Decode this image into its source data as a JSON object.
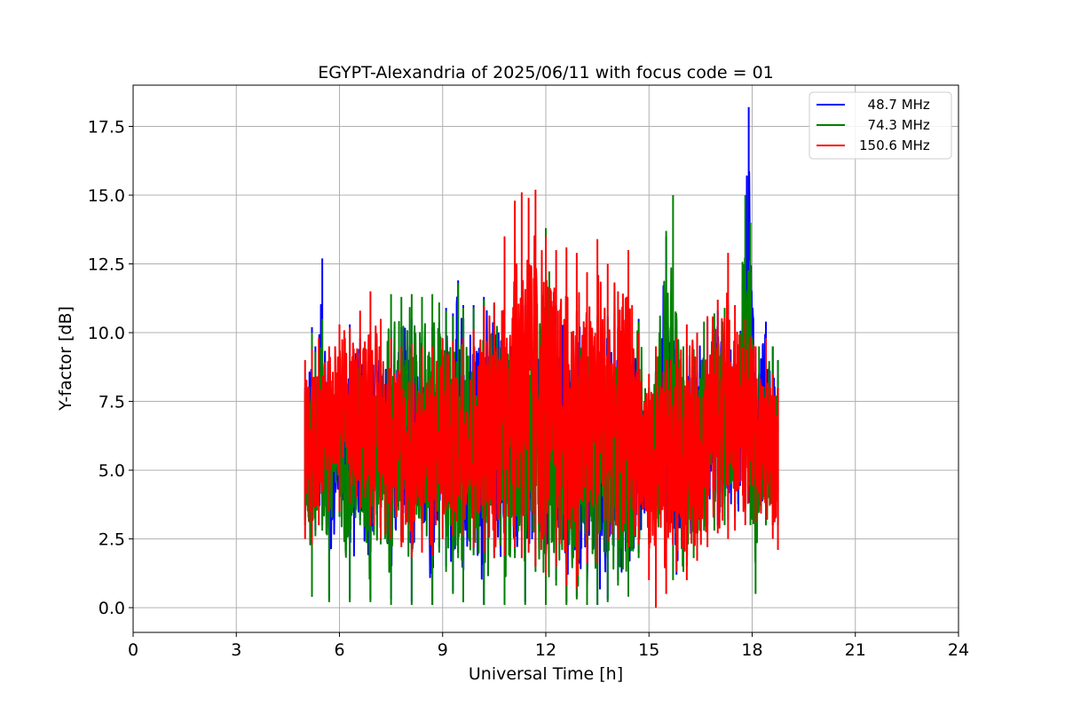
{
  "chart_data": {
    "type": "line",
    "title": "EGYPT-Alexandria of 2025/06/11 with focus code = 01",
    "xlabel": "Universal Time [h]",
    "ylabel": "Y-factor [dB]",
    "xlim": [
      0,
      24
    ],
    "ylim": [
      -0.9,
      19.0
    ],
    "x_ticks": [
      0,
      3,
      6,
      9,
      12,
      15,
      18,
      21,
      24
    ],
    "x_tick_labels": [
      "0",
      "3",
      "6",
      "9",
      "12",
      "15",
      "18",
      "21",
      "24"
    ],
    "y_ticks": [
      0.0,
      2.5,
      5.0,
      7.5,
      10.0,
      12.5,
      15.0,
      17.5
    ],
    "y_tick_labels": [
      "0.0",
      "2.5",
      "5.0",
      "7.5",
      "10.0",
      "12.5",
      "15.0",
      "17.5"
    ],
    "grid": true,
    "legend_position": "top-right",
    "series": [
      {
        "name": "  48.7 MHz",
        "color": "#0000ff",
        "x": [
          5.0,
          5.2,
          5.3,
          5.5,
          5.7,
          6.0,
          6.3,
          6.6,
          6.9,
          7.2,
          7.5,
          7.8,
          8.1,
          8.4,
          8.7,
          8.9,
          9.0,
          9.1,
          9.3,
          9.45,
          9.6,
          9.9,
          10.2,
          10.5,
          10.8,
          11.1,
          11.4,
          11.7,
          12.0,
          12.3,
          12.6,
          12.9,
          13.2,
          13.5,
          13.8,
          14.1,
          14.4,
          14.7,
          15.0,
          15.2,
          15.5,
          15.8,
          16.1,
          16.4,
          16.7,
          17.0,
          17.3,
          17.6,
          17.9,
          18.1,
          18.4,
          18.6,
          18.75
        ],
        "low": [
          3.2,
          0.4,
          2.8,
          3.0,
          0.3,
          3.5,
          0.3,
          3.2,
          0.3,
          2.5,
          0.3,
          2.6,
          0.2,
          2.4,
          0.1,
          2.2,
          6.0,
          1.5,
          0.6,
          2.0,
          0.2,
          2.1,
          0.1,
          2.0,
          0.1,
          2.0,
          0.2,
          1.5,
          0.1,
          1.0,
          0.2,
          0.4,
          0.1,
          0.1,
          0.3,
          1.0,
          0.5,
          2.0,
          2.5,
          3.0,
          2.5,
          1.2,
          1.5,
          2.0,
          3.0,
          3.0,
          3.2,
          3.5,
          3.8,
          3.5,
          3.0,
          3.0,
          3.0
        ],
        "high": [
          8.0,
          10.2,
          9.5,
          12.7,
          9.0,
          9.2,
          10.3,
          9.8,
          10.0,
          9.6,
          10.1,
          10.2,
          10.5,
          10.3,
          10.2,
          10.4,
          7.0,
          10.9,
          10.7,
          11.9,
          11.0,
          11.0,
          11.3,
          11.1,
          10.8,
          10.9,
          11.0,
          10.8,
          10.9,
          11.0,
          10.6,
          10.8,
          10.5,
          10.6,
          10.6,
          10.2,
          10.4,
          10.5,
          7.0,
          9.0,
          13.5,
          9.5,
          9.6,
          9.5,
          10.5,
          10.8,
          11.0,
          8.5,
          18.2,
          9.5,
          10.4,
          9.5,
          9.0
        ]
      },
      {
        "name": "  74.3 MHz",
        "color": "#008000",
        "x": [
          5.0,
          5.2,
          5.3,
          5.5,
          5.7,
          6.0,
          6.3,
          6.6,
          6.9,
          7.2,
          7.5,
          7.8,
          8.1,
          8.4,
          8.7,
          8.9,
          9.1,
          9.3,
          9.45,
          9.6,
          9.9,
          10.2,
          10.5,
          10.8,
          11.1,
          11.4,
          11.7,
          12.0,
          12.3,
          12.6,
          12.9,
          13.2,
          13.5,
          13.8,
          14.1,
          14.4,
          14.7,
          15.0,
          15.2,
          15.5,
          15.7,
          16.0,
          16.3,
          16.6,
          16.9,
          17.2,
          17.5,
          17.8,
          17.95,
          18.1,
          18.2,
          18.4,
          18.6,
          18.75
        ],
        "low": [
          3.0,
          0.4,
          2.6,
          2.8,
          0.2,
          3.3,
          0.2,
          3.0,
          0.2,
          2.3,
          0.1,
          2.4,
          0.1,
          2.2,
          0.1,
          2.0,
          1.3,
          0.5,
          1.8,
          0.2,
          1.9,
          0.1,
          1.8,
          0.1,
          1.8,
          0.1,
          1.3,
          0.1,
          0.8,
          0.1,
          0.3,
          0.1,
          0.1,
          0.2,
          0.8,
          0.4,
          1.8,
          2.3,
          2.8,
          2.3,
          1.0,
          1.3,
          1.8,
          2.8,
          2.8,
          3.0,
          3.3,
          3.6,
          3.0,
          0.5,
          3.5,
          3.0,
          3.0,
          3.0
        ],
        "high": [
          7.8,
          10.0,
          9.3,
          10.5,
          8.8,
          9.0,
          10.1,
          9.6,
          9.8,
          9.4,
          11.4,
          11.3,
          11.4,
          11.3,
          11.4,
          11.1,
          10.8,
          10.6,
          11.8,
          10.9,
          10.9,
          11.2,
          11.0,
          10.7,
          10.8,
          10.9,
          10.7,
          13.8,
          10.9,
          10.5,
          10.7,
          10.4,
          10.5,
          10.5,
          10.1,
          10.3,
          10.4,
          8.0,
          9.5,
          13.7,
          15.0,
          9.5,
          9.4,
          10.4,
          10.7,
          10.9,
          8.4,
          15.0,
          14.0,
          7.5,
          9.5,
          9.4,
          9.5,
          9.0
        ]
      },
      {
        "name": "150.6 MHz",
        "color": "#ff0000",
        "x": [
          5.0,
          5.2,
          5.4,
          5.7,
          6.0,
          6.3,
          6.6,
          6.9,
          7.2,
          7.5,
          7.8,
          8.1,
          8.4,
          8.7,
          9.0,
          9.3,
          9.6,
          9.9,
          10.2,
          10.5,
          10.8,
          11.1,
          11.3,
          11.5,
          11.7,
          12.0,
          12.3,
          12.6,
          12.9,
          13.2,
          13.5,
          13.8,
          14.1,
          14.4,
          14.7,
          15.0,
          15.2,
          15.5,
          15.8,
          16.1,
          16.4,
          16.7,
          17.0,
          17.3,
          17.5,
          17.8,
          18.1,
          18.4,
          18.6,
          18.75
        ],
        "low": [
          2.5,
          2.3,
          3.0,
          3.5,
          3.5,
          3.8,
          3.6,
          3.0,
          2.5,
          2.5,
          2.2,
          1.8,
          2.0,
          1.9,
          2.5,
          2.6,
          2.6,
          2.2,
          2.0,
          1.8,
          1.9,
          2.2,
          1.8,
          2.0,
          1.5,
          1.2,
          1.5,
          0.8,
          0.7,
          1.6,
          1.6,
          2.4,
          2.5,
          2.2,
          2.3,
          1.0,
          0.0,
          0.5,
          1.3,
          1.0,
          1.7,
          2.2,
          2.7,
          2.5,
          2.8,
          3.0,
          3.1,
          3.2,
          2.5,
          2.1
        ],
        "high": [
          9.0,
          9.4,
          9.8,
          9.5,
          10.3,
          10.2,
          10.8,
          11.5,
          10.5,
          9.8,
          9.5,
          9.6,
          9.5,
          9.5,
          9.8,
          9.7,
          9.8,
          10.1,
          11.0,
          11.1,
          13.5,
          14.8,
          15.1,
          14.9,
          15.2,
          13.5,
          13.0,
          13.1,
          12.9,
          12.2,
          13.4,
          12.5,
          11.5,
          13.0,
          10.0,
          8.5,
          9.5,
          9.0,
          9.8,
          10.3,
          10.0,
          10.6,
          11.2,
          12.9,
          11.0,
          10.5,
          9.5,
          9.8,
          8.5,
          8.0
        ]
      }
    ]
  }
}
